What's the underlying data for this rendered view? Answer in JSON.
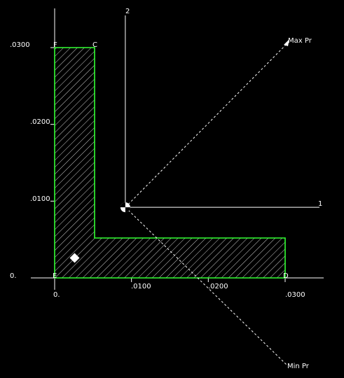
{
  "colors": {
    "background": "#000000",
    "axis": "#ffffff",
    "section_outline": "#33ff33",
    "hatch": "#ffffff",
    "principal_axes": "#ffffff"
  },
  "section": {
    "shape": "L-section",
    "outline_points": [
      [
        0,
        0
      ],
      [
        0.03,
        0
      ],
      [
        0.03,
        0.0052
      ],
      [
        0.0052,
        0.0052
      ],
      [
        0.0052,
        0.03
      ],
      [
        0,
        0.03
      ]
    ],
    "centroid": [
      0.0092,
      0.0092
    ],
    "shear_center": [
      0.0026,
      0.0026
    ]
  },
  "axes": {
    "x_ticks": [
      {
        "value": 0,
        "label": "0."
      },
      {
        "value": 0.01,
        "label": ".0100"
      },
      {
        "value": 0.02,
        "label": ".0200"
      },
      {
        "value": 0.03,
        "label": ".0300"
      }
    ],
    "y_ticks": [
      {
        "value": 0,
        "label": "0."
      },
      {
        "value": 0.01,
        "label": ".0100"
      },
      {
        "value": 0.02,
        "label": ".0200"
      },
      {
        "value": 0.03,
        "label": ".0300"
      }
    ]
  },
  "labels": {
    "axis_1": "1",
    "axis_2": "2",
    "max_pr": "Max Pr",
    "min_pr": "Min Pr",
    "corner_f": "F",
    "corner_c": "C",
    "corner_e": "E",
    "corner_d": "D"
  }
}
